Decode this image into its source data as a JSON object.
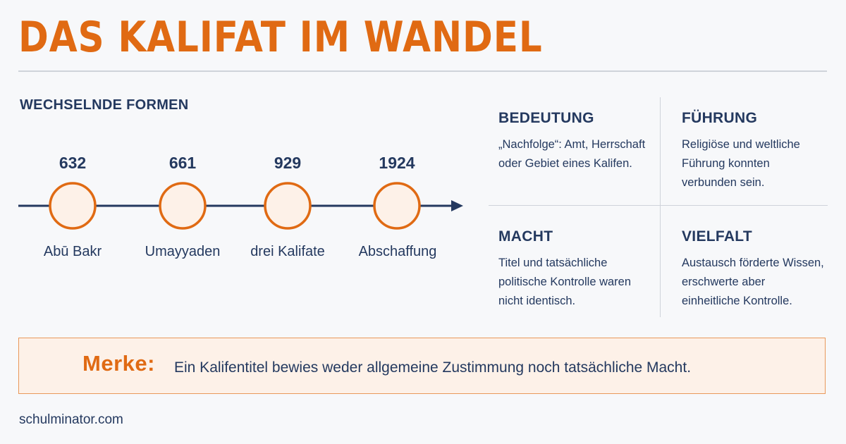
{
  "title": "DAS KALIFAT IM WANDEL",
  "timeline": {
    "heading": "WECHSELNDE FORMEN",
    "events": [
      {
        "year": "632",
        "label": "Abū Bakr"
      },
      {
        "year": "661",
        "label": "Umayyaden"
      },
      {
        "year": "929",
        "label": "drei Kalifate"
      },
      {
        "year": "1924",
        "label": "Abschaffung"
      }
    ]
  },
  "cards": [
    {
      "title": "BEDEUTUNG",
      "text": "„Nachfolge“: Amt, Herrschaft oder Gebiet eines Kalifen."
    },
    {
      "title": "FÜHRUNG",
      "text": "Religiöse und weltliche Führung konnten verbunden sein."
    },
    {
      "title": "MACHT",
      "text": "Titel und tatsächliche politische Kontrolle waren nicht identisch."
    },
    {
      "title": "VIELFALT",
      "text": "Austausch förderte Wissen, erschwerte aber einheitliche Kontrolle."
    }
  ],
  "merke": {
    "label": "Merke:",
    "text": "Ein Kalifentitel bewies weder allgemeine Zustimmung noch tatsächliche Macht."
  },
  "footer": "schulminator.com",
  "colors": {
    "accent": "#e06a13",
    "navy": "#24395f",
    "circle_fill": "#fdf1e8",
    "box_fill": "#fdf1e8"
  }
}
